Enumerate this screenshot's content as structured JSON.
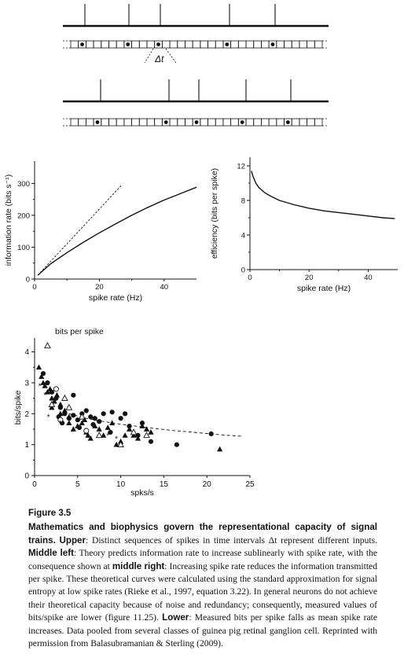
{
  "spike_trains": {
    "delta_t_label": "Δt",
    "train_a_spikes": [
      108,
      164,
      204,
      292,
      350
    ],
    "train_b_spikes": [
      128,
      215,
      253,
      313,
      370
    ],
    "grid_start": 90,
    "grid_end": 410,
    "grid_cells": 33
  },
  "chart_data": [
    {
      "id": "middle-left",
      "type": "line",
      "xlabel": "spike rate (Hz)",
      "ylabel": "information rate (bits s⁻¹)",
      "xlim": [
        0,
        50
      ],
      "ylim": [
        0,
        370
      ],
      "xticks": [
        20,
        40
      ],
      "yticks": [
        0,
        100,
        200,
        300
      ],
      "series": [
        {
          "style": "solid",
          "x": [
            1,
            5,
            10,
            15,
            20,
            25,
            30,
            35,
            40,
            45,
            50
          ],
          "y": [
            12,
            48,
            83,
            115,
            145,
            173,
            200,
            225,
            248,
            268,
            288
          ]
        },
        {
          "style": "dashed",
          "x": [
            1,
            27
          ],
          "y": [
            12,
            296
          ]
        }
      ]
    },
    {
      "id": "middle-right",
      "type": "line",
      "xlabel": "spike rate (Hz)",
      "ylabel": "efficiency (bits per spike)",
      "xlim": [
        0,
        50
      ],
      "ylim": [
        0,
        13
      ],
      "xticks": [
        20,
        40
      ],
      "yticks": [
        0,
        4,
        8,
        12
      ],
      "series": [
        {
          "style": "solid",
          "x": [
            0.5,
            1,
            2,
            3,
            5,
            7,
            10,
            15,
            20,
            25,
            30,
            35,
            40,
            45,
            49
          ],
          "y": [
            11.4,
            10.8,
            10.0,
            9.5,
            8.9,
            8.5,
            8.0,
            7.5,
            7.1,
            6.8,
            6.6,
            6.4,
            6.2,
            6.0,
            5.9
          ]
        }
      ]
    },
    {
      "id": "lower",
      "type": "scatter",
      "title": "bits per spike",
      "xlabel": "spks/s",
      "ylabel": "bits/spike",
      "xlim": [
        0,
        25
      ],
      "ylim": [
        0,
        4.5
      ],
      "xticks": [
        0,
        5,
        10,
        15,
        20,
        25
      ],
      "yticks": [
        0,
        1,
        2,
        3,
        4
      ],
      "series": [
        {
          "marker": "filled-triangle",
          "points": [
            [
              0.5,
              3.5
            ],
            [
              0.8,
              3.2
            ],
            [
              1.0,
              3.0
            ],
            [
              1.2,
              2.9
            ],
            [
              1.5,
              2.7
            ],
            [
              1.8,
              2.8
            ],
            [
              2.0,
              2.5
            ],
            [
              2.3,
              2.4
            ],
            [
              2.6,
              2.6
            ],
            [
              3.0,
              2.3
            ],
            [
              3.5,
              2.1
            ],
            [
              4.0,
              1.9
            ],
            [
              4.5,
              1.5
            ],
            [
              5.0,
              1.6
            ],
            [
              5.5,
              1.7
            ],
            [
              6.0,
              1.4
            ],
            [
              6.5,
              1.2
            ],
            [
              7.0,
              1.6
            ],
            [
              7.5,
              1.5
            ],
            [
              8.0,
              1.3
            ],
            [
              8.5,
              1.55
            ],
            [
              9.0,
              1.7
            ],
            [
              9.5,
              1.0
            ],
            [
              10.0,
              1.1
            ],
            [
              10.5,
              1.3
            ],
            [
              11.0,
              1.5
            ],
            [
              11.5,
              1.3
            ],
            [
              12.0,
              1.2
            ],
            [
              12.5,
              1.6
            ],
            [
              13.0,
              1.5
            ],
            [
              13.5,
              1.4
            ],
            [
              2.0,
              2.2
            ],
            [
              3.0,
              2.0
            ],
            [
              4.0,
              1.7
            ],
            [
              5.8,
              1.8
            ],
            [
              6.2,
              1.3
            ],
            [
              21.5,
              0.85
            ]
          ]
        },
        {
          "marker": "filled-circle",
          "points": [
            [
              1.0,
              3.3
            ],
            [
              1.5,
              3.0
            ],
            [
              2.0,
              2.7
            ],
            [
              2.5,
              2.5
            ],
            [
              3.0,
              2.2
            ],
            [
              3.5,
              2.0
            ],
            [
              4.0,
              1.85
            ],
            [
              4.5,
              1.95
            ],
            [
              5.0,
              1.8
            ],
            [
              5.5,
              2.0
            ],
            [
              6.0,
              2.1
            ],
            [
              6.5,
              1.9
            ],
            [
              7.0,
              1.85
            ],
            [
              7.5,
              1.75
            ],
            [
              8.0,
              2.0
            ],
            [
              9.0,
              2.05
            ],
            [
              10.0,
              1.85
            ],
            [
              10.5,
              2.0
            ],
            [
              11.0,
              1.6
            ],
            [
              12.0,
              1.3
            ],
            [
              12.5,
              1.7
            ],
            [
              13.5,
              1.1
            ],
            [
              4.5,
              2.6
            ],
            [
              3.2,
              1.7
            ],
            [
              2.8,
              1.9
            ],
            [
              5.2,
              1.55
            ],
            [
              6.8,
              1.65
            ],
            [
              8.8,
              1.4
            ],
            [
              16.5,
              1.0
            ],
            [
              20.5,
              1.35
            ]
          ]
        },
        {
          "marker": "open-triangle",
          "points": [
            [
              1.5,
              4.2
            ],
            [
              2.0,
              2.3
            ],
            [
              3.5,
              2.5
            ],
            [
              4.0,
              2.2
            ],
            [
              5.5,
              1.9
            ],
            [
              7.5,
              1.3
            ],
            [
              10.0,
              1.0
            ],
            [
              11.5,
              1.4
            ],
            [
              13.0,
              1.3
            ]
          ]
        },
        {
          "marker": "open-circle",
          "points": [
            [
              2.5,
              2.8
            ],
            [
              3.0,
              1.8
            ],
            [
              6.0,
              1.45
            ]
          ]
        },
        {
          "marker": "asterisk",
          "points": [
            [
              0.6,
              2.9
            ],
            [
              1.2,
              2.6
            ],
            [
              1.6,
              1.9
            ],
            [
              3.0,
              1.7
            ],
            [
              6.5,
              1.2
            ],
            [
              8.5,
              1.3
            ],
            [
              9.5,
              1.2
            ]
          ]
        }
      ],
      "fit": {
        "style": "dashed",
        "x": [
          4,
          6,
          8,
          10,
          12,
          14,
          16,
          18,
          20,
          22,
          24
        ],
        "y": [
          2.0,
          1.85,
          1.75,
          1.66,
          1.59,
          1.52,
          1.46,
          1.41,
          1.36,
          1.31,
          1.27
        ]
      }
    }
  ],
  "caption": {
    "figure_number": "Figure 3.5",
    "lead": "Mathematics and biophysics govern the representational capacity of signal trains.",
    "upper_label": "Upper",
    "upper_text": ": Distinct sequences of spikes in time intervals Δt represent different inputs.",
    "middle_left_label": "Middle left",
    "middle_left_text": ": Theory predicts information rate to increase sublinearly with spike rate, with the consequence shown at ",
    "middle_right_label": "middle right",
    "middle_right_text": ": Increasing spike rate reduces the information transmitted per spike. These theoretical curves were calculated using the standard approximation for signal entropy at low spike rates (Rieke et al., 1997, equation 3.22). In general neurons do not achieve their theoretical capacity because of noise and redundancy; consequently, measured values of bits/spike are lower (figure 11.25).",
    "lower_label": "Lower",
    "lower_text": ": Measured bits per spike falls as mean spike rate increases. Data pooled from several classes of guinea pig retinal ganglion cell. Reprinted with permission from Balasubramanian & Sterling (2009)."
  }
}
